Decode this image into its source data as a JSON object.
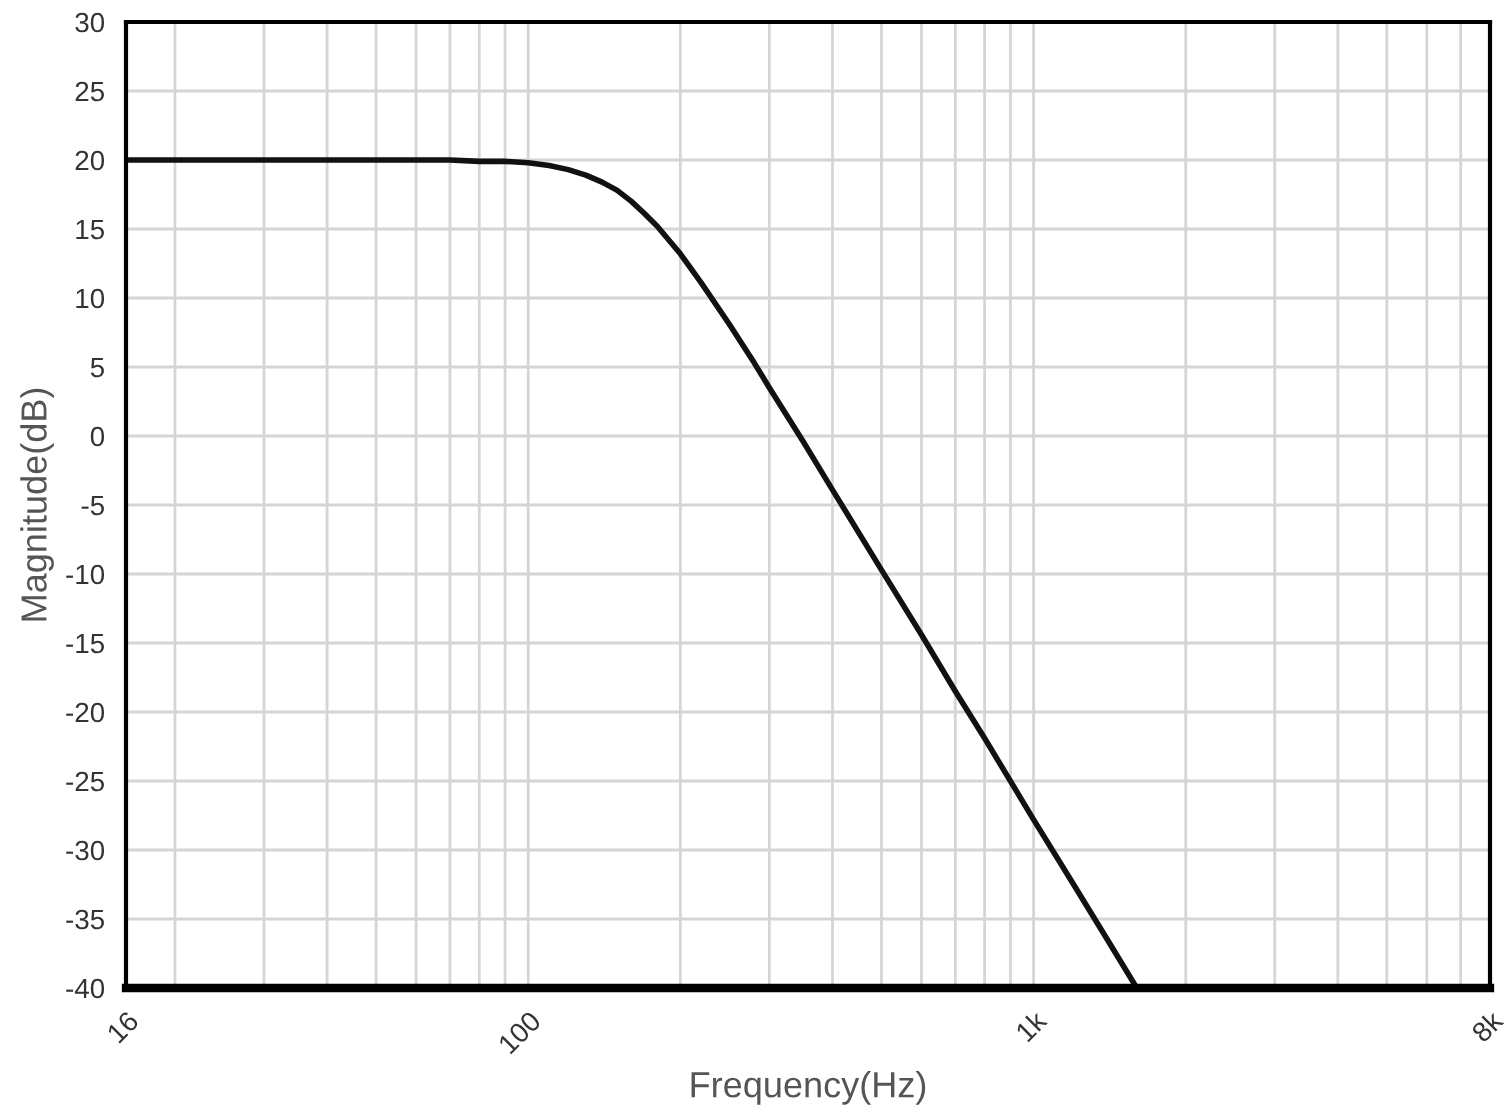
{
  "chart_data": {
    "type": "line",
    "xlabel": "Frequency(Hz)",
    "ylabel": "Magnitude(dB)",
    "log": "x",
    "grid": true,
    "marker": "none",
    "line_style": "solid",
    "x": [
      16,
      20,
      25,
      30,
      40,
      50,
      60,
      70,
      80,
      90,
      100,
      110,
      120,
      130,
      140,
      150,
      160,
      170,
      180,
      200,
      220,
      250,
      280,
      300,
      350,
      400,
      500,
      600,
      700,
      800,
      1000,
      1200,
      1400,
      1600
    ],
    "series": [
      {
        "color": "#111111",
        "values": [
          20.0,
          20.0,
          20.0,
          20.0,
          20.0,
          20.0,
          20.0,
          20.0,
          19.9,
          19.9,
          19.8,
          19.6,
          19.3,
          18.9,
          18.4,
          17.8,
          17.0,
          16.1,
          15.2,
          13.2,
          11.1,
          8.1,
          5.3,
          3.5,
          -0.4,
          -3.9,
          -9.7,
          -14.4,
          -18.5,
          -21.9,
          -27.8,
          -32.5,
          -36.5,
          -40.0
        ]
      }
    ],
    "xlim": [
      16,
      8000
    ],
    "ylim": [
      -40,
      30
    ],
    "xticks": [
      {
        "value": 16,
        "label": "16"
      },
      {
        "value": 20,
        "label": null
      },
      {
        "value": 30,
        "label": null
      },
      {
        "value": 40,
        "label": null
      },
      {
        "value": 50,
        "label": null
      },
      {
        "value": 60,
        "label": null
      },
      {
        "value": 70,
        "label": null
      },
      {
        "value": 80,
        "label": null
      },
      {
        "value": 90,
        "label": null
      },
      {
        "value": 100,
        "label": "100"
      },
      {
        "value": 200,
        "label": null
      },
      {
        "value": 300,
        "label": null
      },
      {
        "value": 400,
        "label": null
      },
      {
        "value": 500,
        "label": null
      },
      {
        "value": 600,
        "label": null
      },
      {
        "value": 700,
        "label": null
      },
      {
        "value": 800,
        "label": null
      },
      {
        "value": 900,
        "label": null
      },
      {
        "value": 1000,
        "label": "1k"
      },
      {
        "value": 2000,
        "label": null
      },
      {
        "value": 3000,
        "label": null
      },
      {
        "value": 4000,
        "label": null
      },
      {
        "value": 5000,
        "label": null
      },
      {
        "value": 6000,
        "label": null
      },
      {
        "value": 7000,
        "label": null
      },
      {
        "value": 8000,
        "label": "8k"
      }
    ],
    "yticks": [
      -40,
      -35,
      -30,
      -25,
      -20,
      -15,
      -10,
      -5,
      0,
      5,
      10,
      15,
      20,
      25,
      30
    ]
  }
}
